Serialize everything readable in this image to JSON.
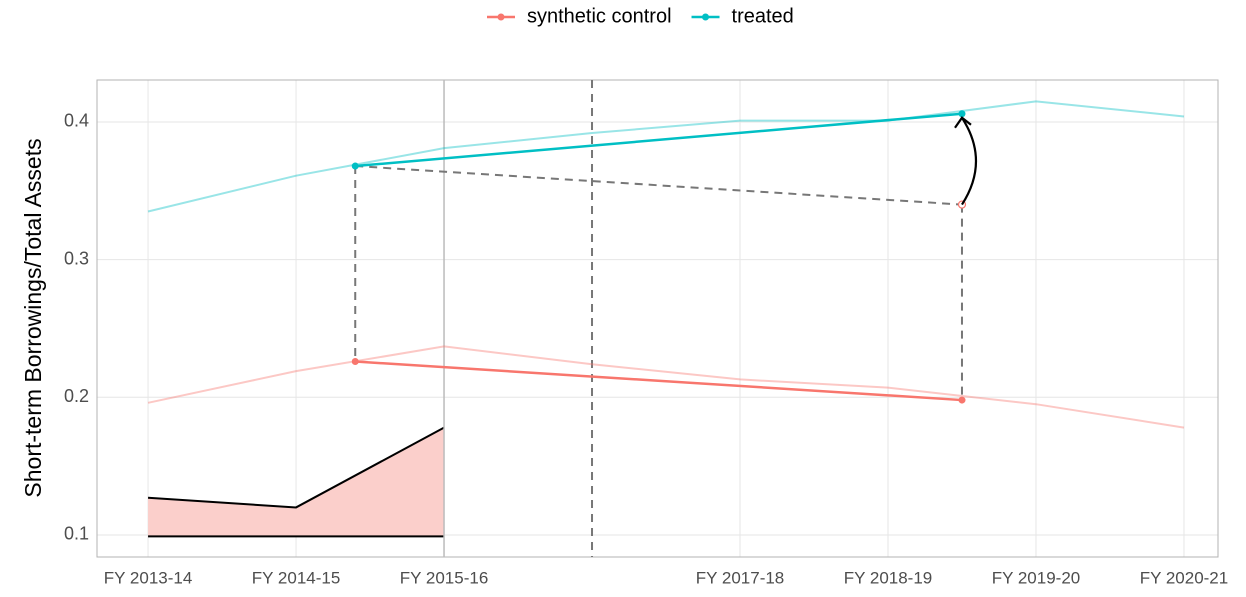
{
  "chart_data": {
    "type": "line",
    "y_label": "Short-term Borrowings/Total Assets",
    "x": [
      0,
      1,
      2,
      3,
      4,
      5,
      6,
      7
    ],
    "xlim": [
      -0.345,
      7.23
    ],
    "xticks": [
      {
        "value": 0,
        "label": "FY 2013-14"
      },
      {
        "value": 1,
        "label": "FY 2014-15"
      },
      {
        "value": 2,
        "label": "FY 2015-16"
      },
      {
        "value": 4,
        "label": "FY 2017-18"
      },
      {
        "value": 5,
        "label": "FY 2018-19"
      },
      {
        "value": 6,
        "label": "FY 2019-20"
      },
      {
        "value": 7,
        "label": "FY 2020-21"
      }
    ],
    "ylim": [
      0.084,
      0.4305
    ],
    "yticks": [
      0.1,
      0.2,
      0.3,
      0.4
    ],
    "grid": true,
    "legend": "top",
    "series": [
      {
        "name": "synthetic control",
        "color": "#f8766d",
        "values": [
          0.196,
          0.219,
          0.237,
          0.224,
          0.213,
          0.207,
          0.195,
          0.178
        ],
        "segment_values": [
          0.226,
          0.198
        ]
      },
      {
        "name": "treated",
        "color": "#00bfc4",
        "values": [
          0.335,
          0.361,
          0.381,
          0.392,
          0.401,
          0.401,
          0.415,
          0.404
        ],
        "segment_values": [
          0.368,
          0.406
        ]
      }
    ],
    "segment_x": [
      1.4,
      5.5
    ],
    "counterfactual": 0.34,
    "intervention_x": 3,
    "inset": {
      "x": [
        0,
        1,
        2
      ],
      "upper": [
        0.127,
        0.12,
        0.178
      ],
      "lower": 0.099,
      "color": "#fbcfcb"
    }
  }
}
